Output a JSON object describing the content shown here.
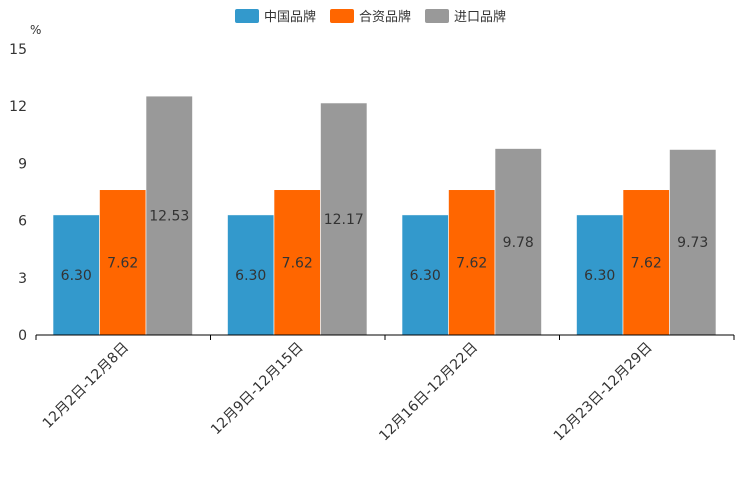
{
  "chart_data": {
    "type": "bar",
    "unit": "%",
    "categories": [
      "12月2日-12月8日",
      "12月9日-12月15日",
      "12月16日-12月22日",
      "12月23日-12月29日"
    ],
    "series": [
      {
        "name": "中国品牌",
        "color": "#3399cc",
        "values": [
          6.3,
          6.3,
          6.3,
          6.3
        ],
        "labels": [
          "6.30",
          "6.30",
          "6.30",
          "6.30"
        ]
      },
      {
        "name": "合资品牌",
        "color": "#ff6600",
        "values": [
          7.62,
          7.62,
          7.62,
          7.62
        ],
        "labels": [
          "7.62",
          "7.62",
          "7.62",
          "7.62"
        ]
      },
      {
        "name": "进口品牌",
        "color": "#999999",
        "values": [
          12.53,
          12.17,
          9.78,
          9.73
        ],
        "labels": [
          "12.53",
          "12.17",
          "9.78",
          "9.73"
        ]
      }
    ],
    "yticks": [
      "0",
      "3",
      "6",
      "9",
      "12",
      "15"
    ],
    "ylim": [
      0,
      15
    ],
    "legend_position": "top-center",
    "grid": false
  }
}
